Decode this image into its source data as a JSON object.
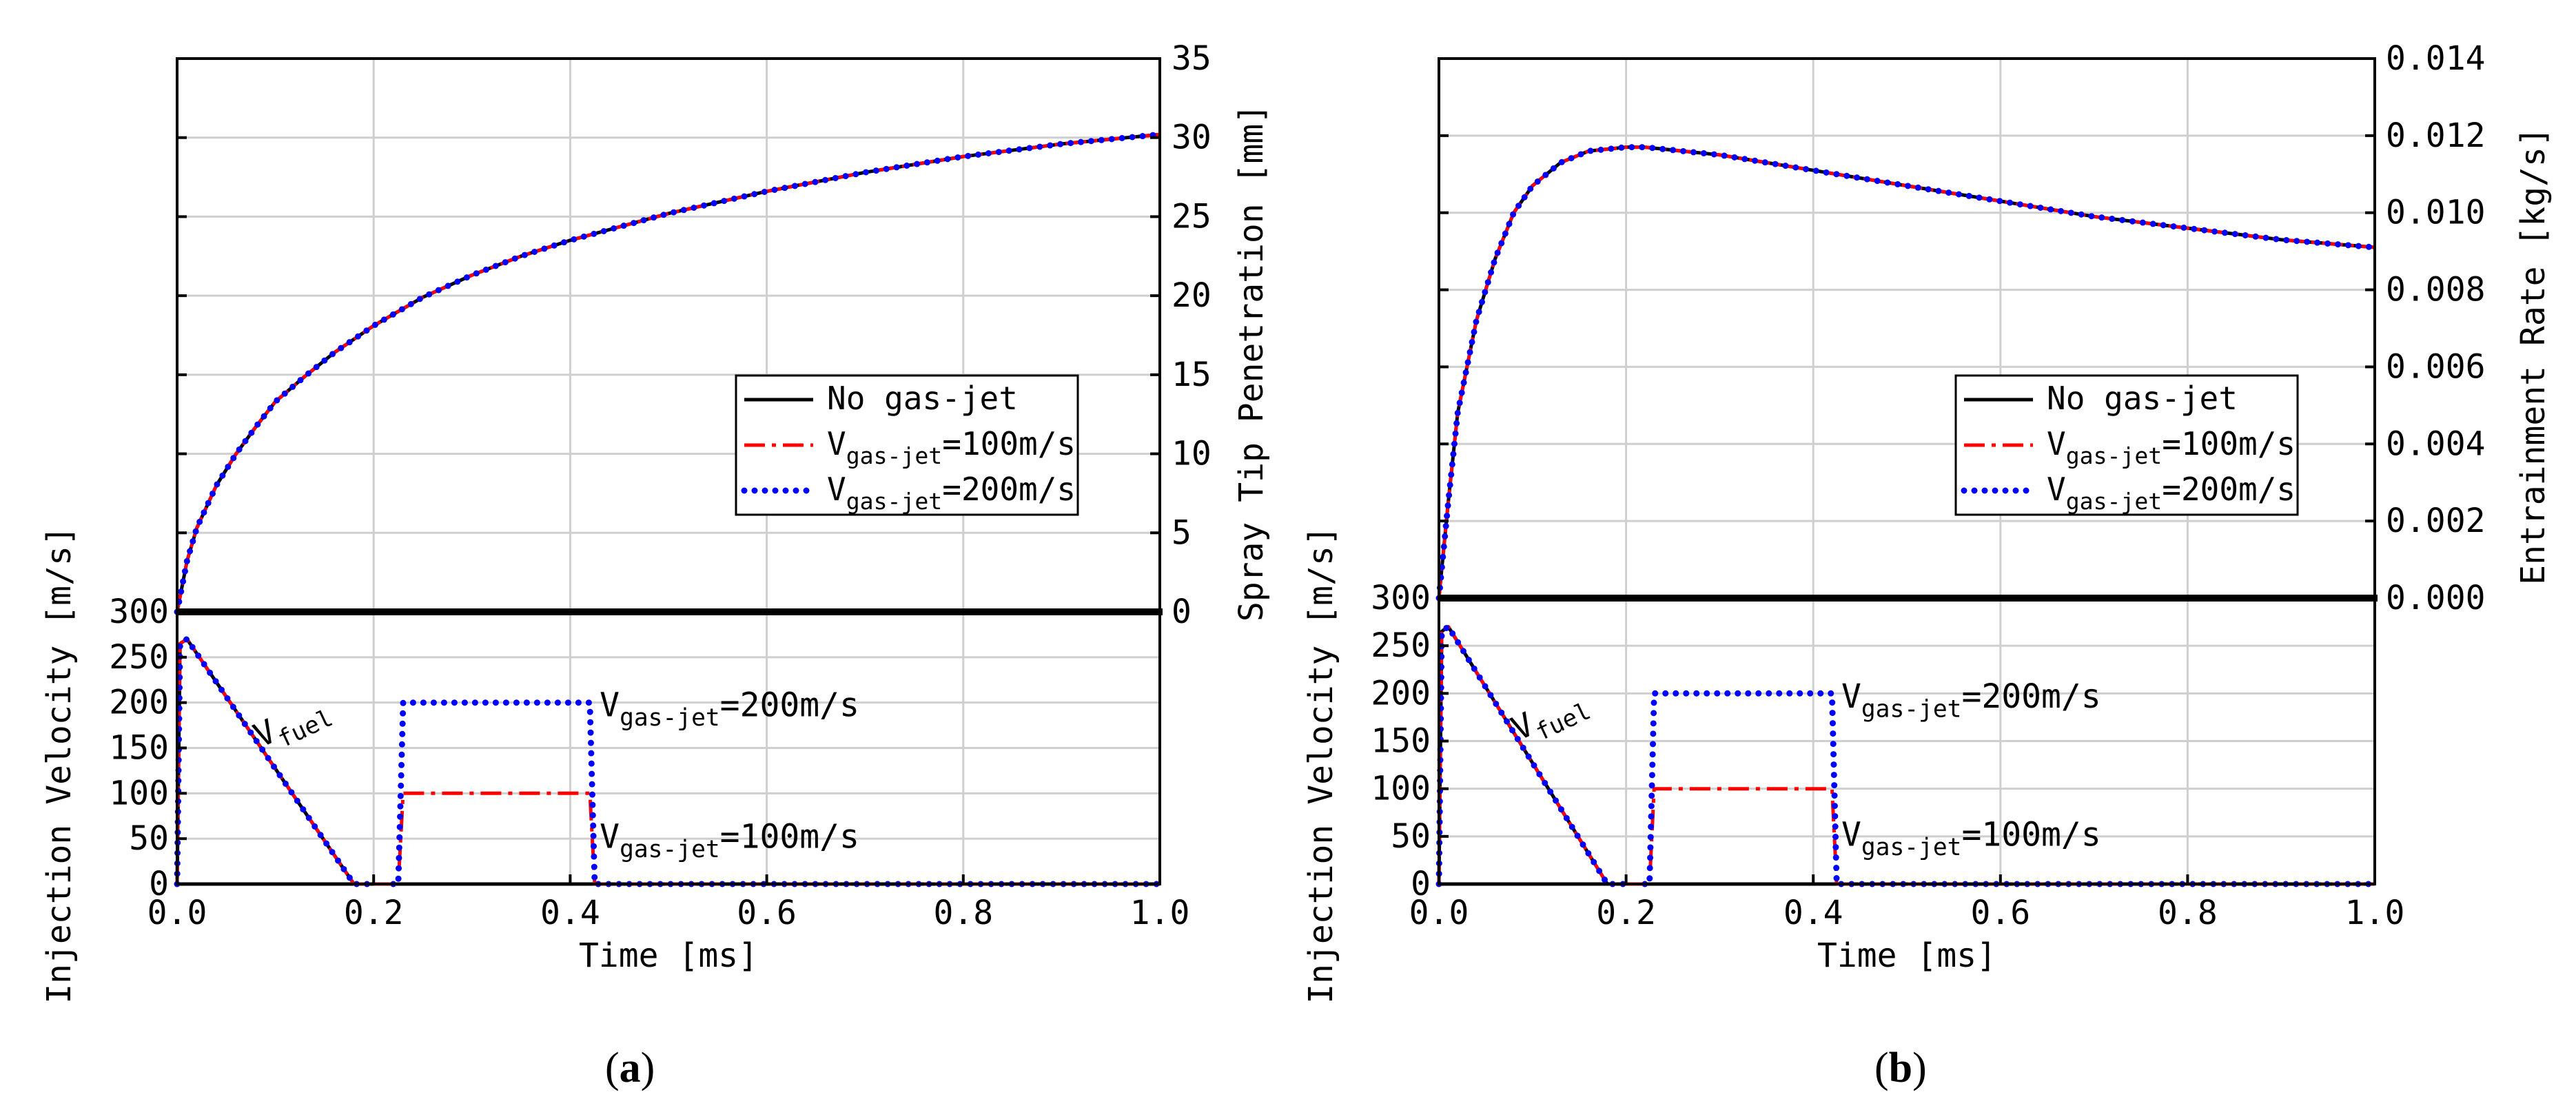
{
  "figure": {
    "panel_labels": [
      {
        "letter": "a"
      },
      {
        "letter": "b"
      }
    ],
    "legend": {
      "entries": [
        {
          "text": "No gas-jet",
          "color": "#000000",
          "style": "solid"
        },
        {
          "text": "V",
          "sub": "gas-jet",
          "rest": "=100m/s",
          "color": "#ff0000",
          "style": "dashdot"
        },
        {
          "text": "V",
          "sub": "gas-jet",
          "rest": "=200m/s",
          "color": "#0000ff",
          "style": "dotted"
        }
      ]
    }
  },
  "chart_data": [
    {
      "type": "line",
      "panel": "a",
      "xlabel": "Time [ms]",
      "xlim": [
        0.0,
        1.0
      ],
      "xticks": [
        "0.0",
        "0.2",
        "0.4",
        "0.6",
        "0.8",
        "1.0"
      ],
      "top": {
        "ylabel": "Spray Tip Penetration [mm]",
        "ylim": [
          0,
          35
        ],
        "yticks": [
          "0",
          "5",
          "10",
          "15",
          "20",
          "25",
          "30",
          "35"
        ],
        "x": [
          0,
          0.01,
          0.02,
          0.04,
          0.06,
          0.08,
          0.1,
          0.13,
          0.16,
          0.2,
          0.25,
          0.3,
          0.35,
          0.4,
          0.5,
          0.6,
          0.7,
          0.8,
          0.9,
          1.0
        ],
        "series": [
          {
            "name": "No gas-jet",
            "color": "#000000",
            "values": [
              0,
              3.2,
              5.3,
              8.0,
              10.0,
              11.7,
              13.3,
              14.9,
              16.4,
              18.1,
              19.9,
              21.3,
              22.5,
              23.5,
              25.2,
              26.6,
              27.8,
              28.8,
              29.6,
              30.2
            ]
          },
          {
            "name": "V gas-jet=100m/s",
            "color": "#ff0000",
            "values": [
              0,
              3.2,
              5.3,
              8.0,
              10.0,
              11.7,
              13.3,
              14.9,
              16.4,
              18.1,
              19.9,
              21.3,
              22.5,
              23.5,
              25.2,
              26.6,
              27.8,
              28.8,
              29.6,
              30.2
            ]
          },
          {
            "name": "V gas-jet=200m/s",
            "color": "#0000ff",
            "values": [
              0,
              3.2,
              5.3,
              8.0,
              10.0,
              11.7,
              13.3,
              14.9,
              16.4,
              18.1,
              19.9,
              21.3,
              22.5,
              23.5,
              25.2,
              26.6,
              27.8,
              28.8,
              29.6,
              30.2
            ]
          }
        ]
      },
      "bottom": {
        "ylabel": "Injection Velocity [m/s]",
        "ylim": [
          0,
          300
        ],
        "yticks": [
          "0",
          "50",
          "100",
          "150",
          "200",
          "250",
          "300"
        ],
        "fuel": {
          "x": [
            0,
            0.003,
            0.01,
            0.18,
            0.2
          ],
          "y": [
            0,
            265,
            270,
            0,
            0
          ]
        },
        "gas100": {
          "x": [
            0.2,
            0.225,
            0.23,
            0.42,
            0.425,
            1.0
          ],
          "y": [
            0,
            0,
            100,
            100,
            0,
            0
          ]
        },
        "gas200": {
          "x": [
            0.22,
            0.225,
            0.23,
            0.42,
            0.425,
            1.0
          ],
          "y": [
            0,
            0,
            200,
            200,
            0,
            0
          ]
        },
        "annotations": [
          {
            "text": "V",
            "sub": "fuel"
          },
          {
            "text": "V",
            "sub": "gas-jet",
            "rest": "=200m/s"
          },
          {
            "text": "V",
            "sub": "gas-jet",
            "rest": "=100m/s"
          }
        ]
      }
    },
    {
      "type": "line",
      "panel": "b",
      "xlabel": "Time [ms]",
      "xlim": [
        0.0,
        1.0
      ],
      "xticks": [
        "0.0",
        "0.2",
        "0.4",
        "0.6",
        "0.8",
        "1.0"
      ],
      "top": {
        "ylabel": "Entrainment Rate [kg/s]",
        "ylim": [
          0,
          0.014
        ],
        "yticks": [
          "0.000",
          "0.002",
          "0.004",
          "0.006",
          "0.008",
          "0.010",
          "0.012",
          "0.014"
        ],
        "x": [
          0,
          0.01,
          0.02,
          0.04,
          0.06,
          0.08,
          0.1,
          0.13,
          0.16,
          0.2,
          0.22,
          0.3,
          0.4,
          0.5,
          0.6,
          0.7,
          0.8,
          0.9,
          1.0
        ],
        "series": [
          {
            "name": "No gas-jet",
            "color": "#000000",
            "values": [
              0,
              0.0025,
              0.0048,
              0.0072,
              0.0088,
              0.01,
              0.0107,
              0.0113,
              0.0116,
              0.0117,
              0.0117,
              0.0115,
              0.0111,
              0.0107,
              0.0103,
              0.0099,
              0.0096,
              0.0093,
              0.0091
            ]
          },
          {
            "name": "V gas-jet=100m/s",
            "color": "#ff0000",
            "values": [
              0,
              0.0025,
              0.0048,
              0.0072,
              0.0088,
              0.01,
              0.0107,
              0.0113,
              0.0116,
              0.0117,
              0.0117,
              0.0115,
              0.0111,
              0.0107,
              0.0103,
              0.0099,
              0.0096,
              0.0093,
              0.0091
            ]
          },
          {
            "name": "V gas-jet=200m/s",
            "color": "#0000ff",
            "values": [
              0,
              0.0025,
              0.0048,
              0.0072,
              0.0088,
              0.01,
              0.0107,
              0.0113,
              0.0116,
              0.0117,
              0.0117,
              0.0115,
              0.0111,
              0.0107,
              0.0103,
              0.0099,
              0.0096,
              0.0093,
              0.0091
            ]
          }
        ]
      },
      "bottom": {
        "ylabel": "Injection Velocity [m/s]",
        "ylim": [
          0,
          300
        ],
        "yticks": [
          "0",
          "50",
          "100",
          "150",
          "200",
          "250",
          "300"
        ],
        "fuel": {
          "x": [
            0,
            0.003,
            0.01,
            0.18,
            0.2
          ],
          "y": [
            0,
            265,
            270,
            0,
            0
          ]
        },
        "gas100": {
          "x": [
            0.2,
            0.225,
            0.23,
            0.42,
            0.425,
            1.0
          ],
          "y": [
            0,
            0,
            100,
            100,
            0,
            0
          ]
        },
        "gas200": {
          "x": [
            0.22,
            0.225,
            0.23,
            0.42,
            0.425,
            1.0
          ],
          "y": [
            0,
            0,
            200,
            200,
            0,
            0
          ]
        },
        "annotations": [
          {
            "text": "V",
            "sub": "fuel"
          },
          {
            "text": "V",
            "sub": "gas-jet",
            "rest": "=200m/s"
          },
          {
            "text": "V",
            "sub": "gas-jet",
            "rest": "=100m/s"
          }
        ]
      }
    }
  ]
}
